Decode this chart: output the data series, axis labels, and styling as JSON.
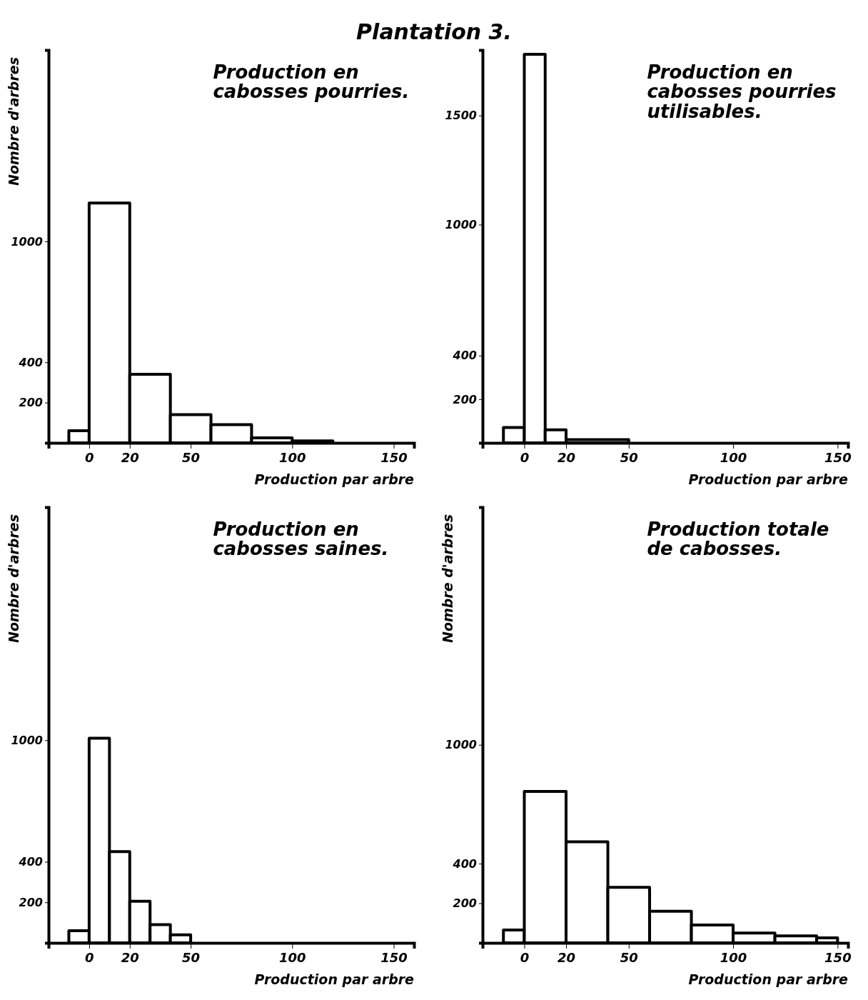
{
  "chart_data": [
    {
      "type": "histogram",
      "title": "Production en cabosses pourries.",
      "annotations": [
        "Plantation 3."
      ],
      "xlabel": "Production par arbre",
      "ylabel": "Nombre d'arbres",
      "bins": [
        -10,
        0,
        20,
        40,
        60,
        80,
        100,
        120
      ],
      "values": [
        60,
        1190,
        340,
        140,
        90,
        25,
        10
      ],
      "color": "#000000",
      "xlim": [
        -20,
        160
      ],
      "xticks": [
        0,
        20,
        50,
        100,
        150
      ],
      "ylim": [
        0,
        1950
      ],
      "yticks": [
        200,
        400,
        1000
      ],
      "grid": false
    },
    {
      "type": "histogram",
      "title": "Production en cabosses pourries utilisables.",
      "xlabel": "Production par arbre",
      "bins": [
        -10,
        0,
        10,
        20,
        50
      ],
      "values": [
        70,
        1780,
        60,
        15
      ],
      "color": "#000000",
      "xlim": [
        -20,
        155
      ],
      "xticks": [
        0,
        20,
        50,
        100,
        150
      ],
      "ylim": [
        0,
        1800
      ],
      "yticks": [
        200,
        400,
        1000,
        1500
      ],
      "grid": false
    },
    {
      "type": "histogram",
      "title": "Production en cabosses saines.",
      "xlabel": "Production par arbre",
      "ylabel": "Nombre d'arbres",
      "bins": [
        -10,
        0,
        10,
        20,
        30,
        40,
        50
      ],
      "values": [
        60,
        1010,
        450,
        205,
        90,
        40
      ],
      "color": "#000000",
      "xlim": [
        -20,
        160
      ],
      "xticks": [
        0,
        20,
        50,
        100,
        150
      ],
      "ylim": [
        0,
        2150
      ],
      "yticks": [
        200,
        400,
        1000
      ],
      "grid": false
    },
    {
      "type": "histogram",
      "title": "Production totale de cabosses.",
      "xlabel": "Production par arbre",
      "ylabel": "Nombre d'arbres",
      "bins": [
        -10,
        0,
        20,
        40,
        60,
        80,
        100,
        120,
        140,
        150
      ],
      "values": [
        65,
        765,
        510,
        280,
        160,
        90,
        50,
        35,
        25
      ],
      "color": "#000000",
      "xlim": [
        -20,
        155
      ],
      "xticks": [
        0,
        20,
        50,
        100,
        150
      ],
      "ylim": [
        0,
        2200
      ],
      "yticks": [
        200,
        400,
        1000
      ],
      "grid": false
    }
  ]
}
